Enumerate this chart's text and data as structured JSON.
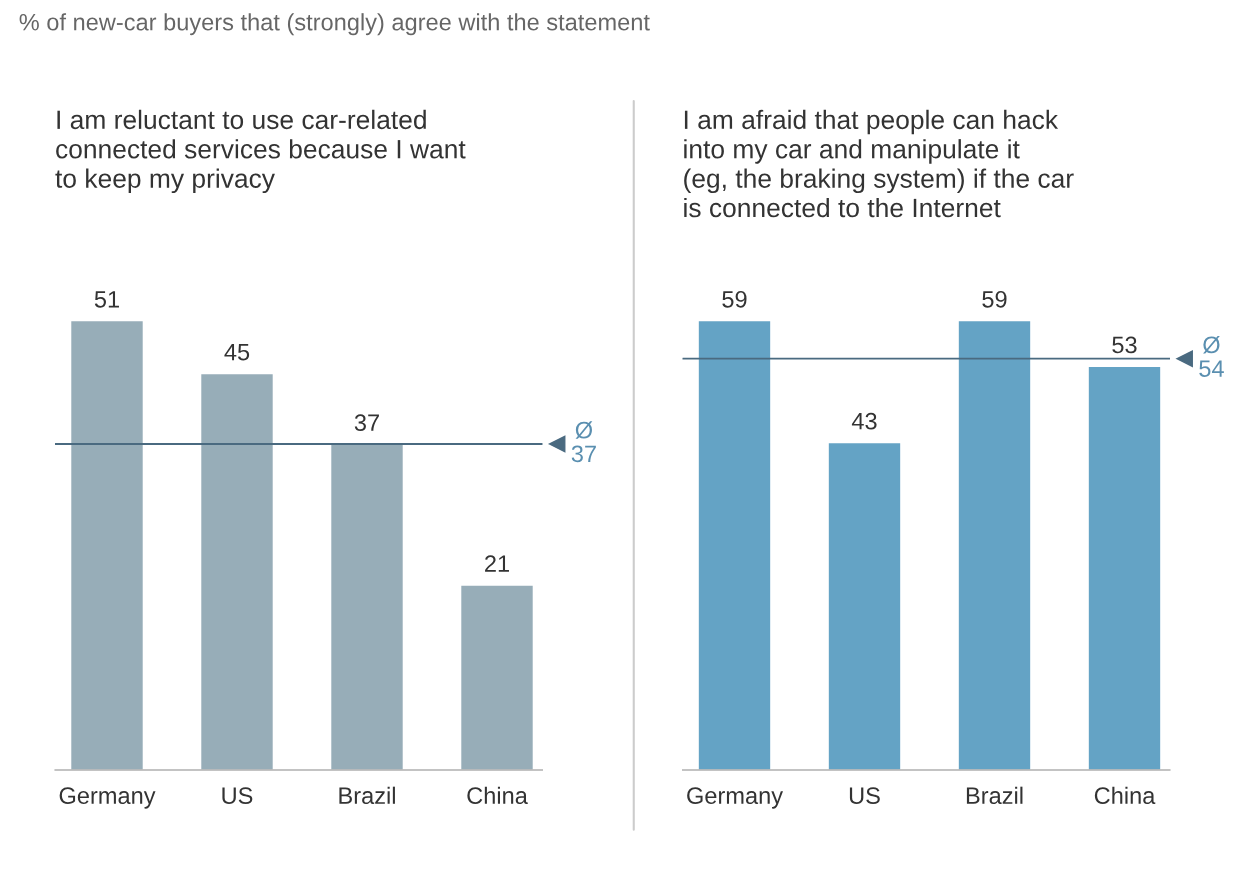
{
  "chart_data": [
    {
      "type": "bar",
      "subtitle": "% of new-car buyers that (strongly) agree with the statement",
      "title": "I am reluctant to use car-related\nconnected services because I want\nto keep my privacy",
      "categories": [
        "Germany",
        "US",
        "Brazil",
        "China"
      ],
      "values": [
        51,
        45,
        37,
        21
      ],
      "color": "#97adb8",
      "data_labels": true,
      "ref_lines": [
        {
          "axis": "y",
          "value": 37,
          "label": "Ø\n37",
          "color": "#4a6a80"
        }
      ]
    },
    {
      "type": "bar",
      "title": "I am afraid that people can hack\ninto my car and manipulate it\n(eg, the braking system) if the car\nis connected to the Internet",
      "categories": [
        "Germany",
        "US",
        "Brazil",
        "China"
      ],
      "values": [
        59,
        43,
        59,
        53
      ],
      "color": "#64a3c5",
      "data_labels": true,
      "ref_lines": [
        {
          "axis": "y",
          "value": 54,
          "label": "Ø\n54",
          "color": "#4a6a80"
        }
      ]
    }
  ]
}
